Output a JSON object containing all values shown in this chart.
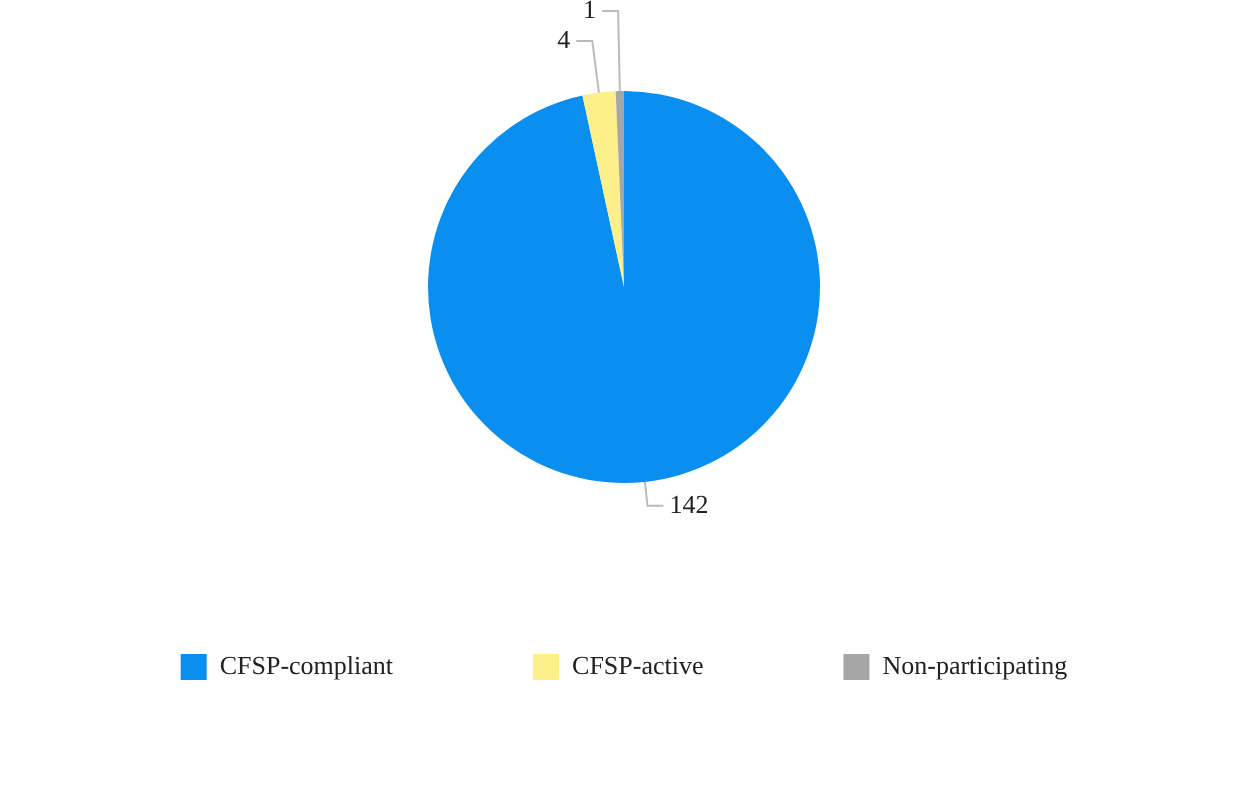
{
  "chart_data": {
    "type": "pie",
    "categories": [
      "CFSP-compliant",
      "CFSP-active",
      "Non-participating"
    ],
    "values": [
      142,
      4,
      1
    ],
    "colors": [
      "#0a8ff0",
      "#fdf08a",
      "#a6a6a6"
    ],
    "data_labels": true,
    "legend": "bottom"
  }
}
